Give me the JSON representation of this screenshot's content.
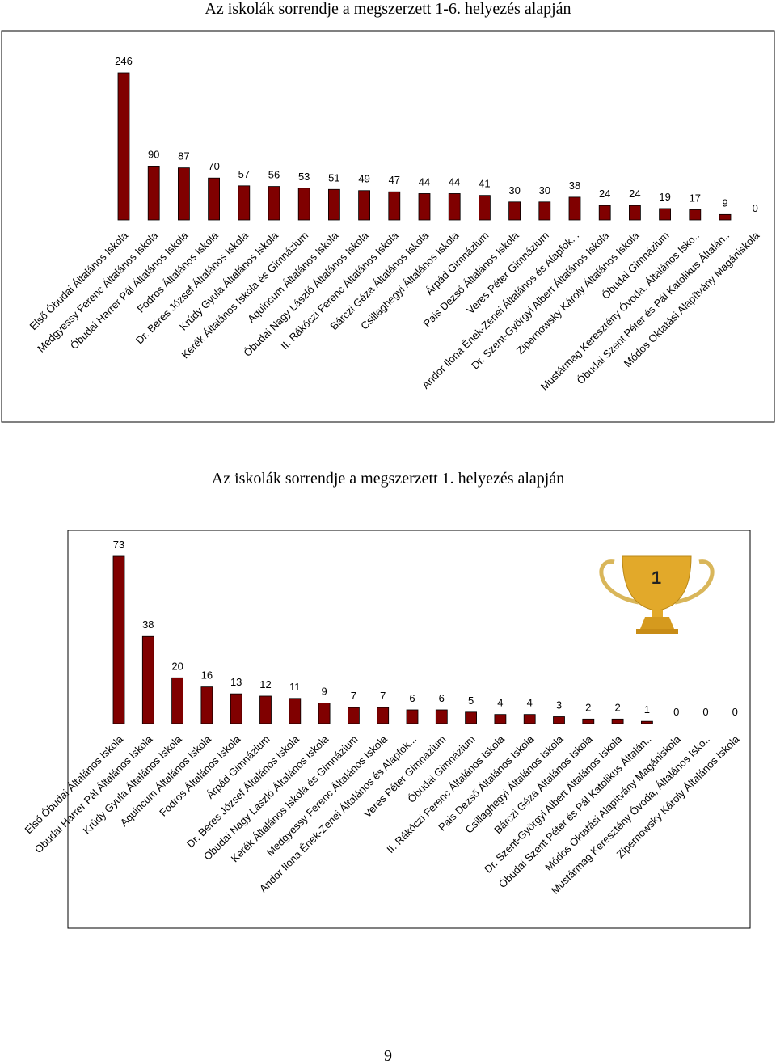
{
  "chart_data": [
    {
      "type": "bar",
      "title": "Az iskolák sorrendje a megszerzett 1-6. helyezés alapján",
      "color": "#800000",
      "categories": [
        "Első Óbudai Általános Iskola",
        "Medgyessy Ferenc Általános Iskola",
        "Óbudai Harrer Pál Általános Iskola",
        "Fodros Általános Iskola",
        "Dr. Béres József Általános Iskola",
        "Krúdy Gyula Általános Iskola",
        "Kerék Általános Iskola és Gimnázium",
        "Aquincum Általános Iskola",
        "Óbudai Nagy László Általános Iskola",
        "II. Rákóczi Ferenc Általános Iskola",
        "Bárczi Géza Általános Iskola",
        "Csillaghegyi Általános Iskola",
        "Árpád Gimnázium",
        "Pais Dezső Általános Iskola",
        "Veres Péter Gimnázium",
        "Andor Ilona Ének-Zenei Általános és  Alapfok...",
        "Dr. Szent-Györgyi Albert Általános Iskola",
        "Zipernowsky Károly Általános Iskola",
        "Óbudai Gimnázium",
        "Mustármag Keresztény Óvoda,  Általános Isko..",
        "Óbudai Szent Péter és Pál  Katolikus Általán..",
        "Módos Oktatási Alapítvány Magániskola"
      ],
      "values": [
        246,
        90,
        87,
        70,
        57,
        56,
        53,
        51,
        49,
        47,
        44,
        44,
        41,
        30,
        30,
        38,
        24,
        24,
        19,
        17,
        9,
        0
      ]
    },
    {
      "type": "bar",
      "title": "Az iskolák sorrendje a megszerzett 1. helyezés alapján",
      "color": "#800000",
      "categories": [
        "Első Óbudai Általános Iskola",
        "Óbudai Harrer Pál Általános Iskola",
        "Krúdy Gyula Általános Iskola",
        "Aquincum Általános Iskola",
        "Fodros Általános Iskola",
        "Árpád Gimnázium",
        "Dr. Béres József Általános Iskola",
        "Óbudai Nagy László Általános Iskola",
        "Kerék Általános Iskola és Gimnázium",
        "Medgyessy Ferenc Általános Iskola",
        "Andor Ilona Ének-Zenei Általános és  Alapfok...",
        "Veres Péter Gimnázium",
        "Óbudai Gimnázium",
        "II. Rákóczi Ferenc Általános Iskola",
        "Pais Dezső Általános Iskola",
        "Csillaghegyi Általános Iskola",
        "Bárczi Géza Általános Iskola",
        "Dr. Szent-Györgyi Albert Általános Iskola",
        "Óbudai Szent Péter és Pál  Katolikus Általán..",
        "Módos Oktatási Alapítvány Magániskola",
        "Mustármag Keresztény Óvoda,  Általános Isko..",
        "Zipernowsky Károly Általános Iskola"
      ],
      "values": [
        73,
        38,
        20,
        16,
        13,
        12,
        11,
        9,
        7,
        7,
        6,
        6,
        5,
        4,
        4,
        3,
        2,
        2,
        1,
        0,
        0,
        0
      ]
    }
  ],
  "page_number": "9"
}
